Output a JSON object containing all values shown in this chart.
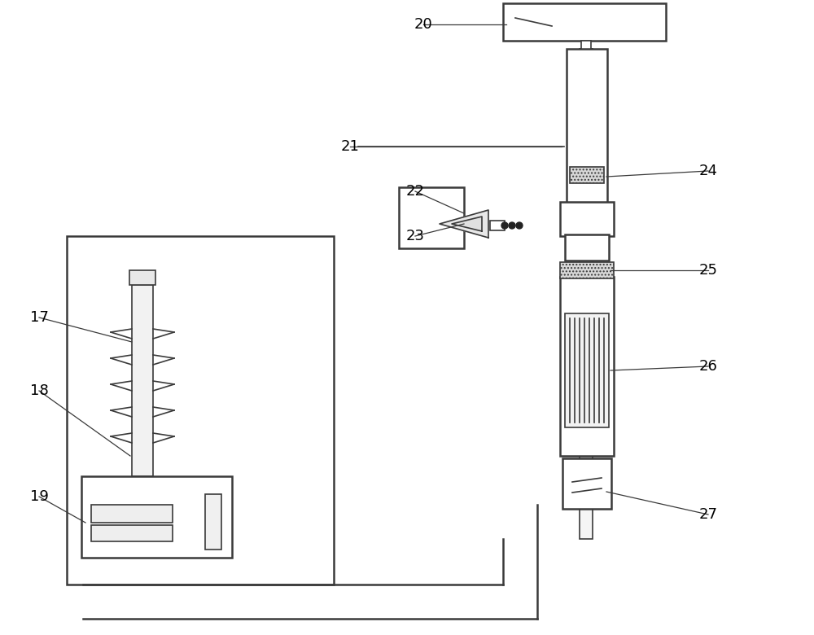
{
  "bg_color": "#ffffff",
  "line_color": "#3a3a3a",
  "lw_main": 1.8,
  "lw_thin": 1.2,
  "fig_width": 10.0,
  "fig_height": 7.8,
  "label_fontsize": 13
}
